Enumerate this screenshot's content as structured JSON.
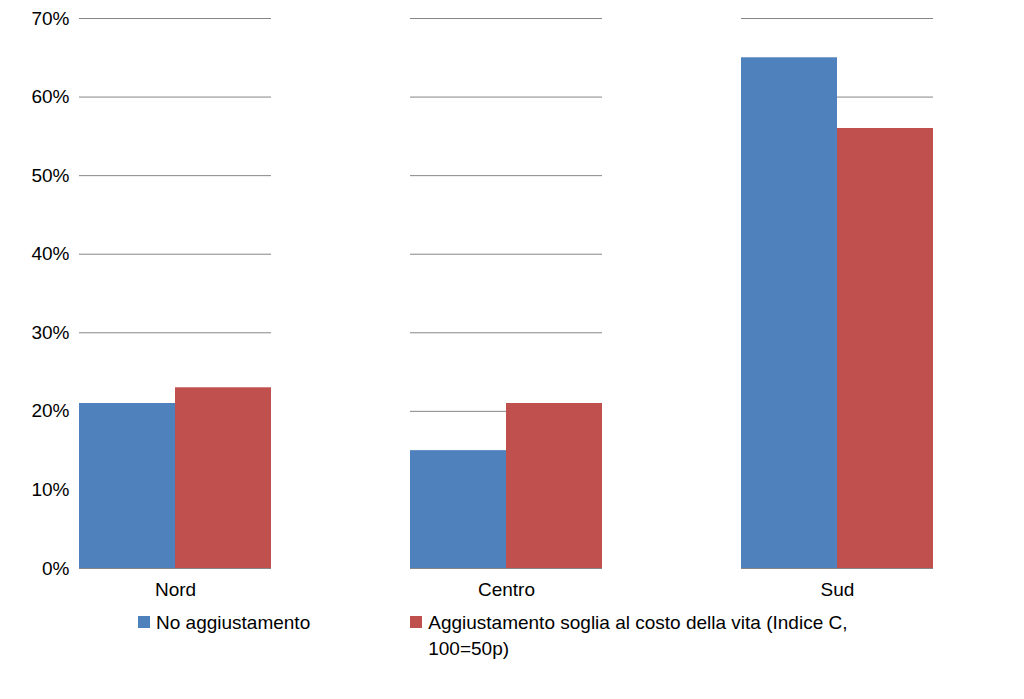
{
  "chart_data": {
    "type": "bar",
    "categories": [
      "Nord",
      "Centro",
      "Sud"
    ],
    "series": [
      {
        "name": "No aggiustamento",
        "color": "#4f81bd",
        "values": [
          21,
          15,
          65
        ]
      },
      {
        "name": "Aggiustamento soglia al costo della vita (Indice C, 100=50p)",
        "color": "#c0504d",
        "values": [
          23,
          21,
          56
        ]
      }
    ],
    "ylim": [
      0,
      70
    ],
    "yticks": [
      {
        "value": 0,
        "label": "0%"
      },
      {
        "value": 10,
        "label": "10%"
      },
      {
        "value": 20,
        "label": "20%"
      },
      {
        "value": 30,
        "label": "30%"
      },
      {
        "value": 40,
        "label": "40%"
      },
      {
        "value": 50,
        "label": "50%"
      },
      {
        "value": 60,
        "label": "60%"
      },
      {
        "value": 70,
        "label": "70%"
      }
    ],
    "grid": true,
    "legend": "bottom"
  }
}
